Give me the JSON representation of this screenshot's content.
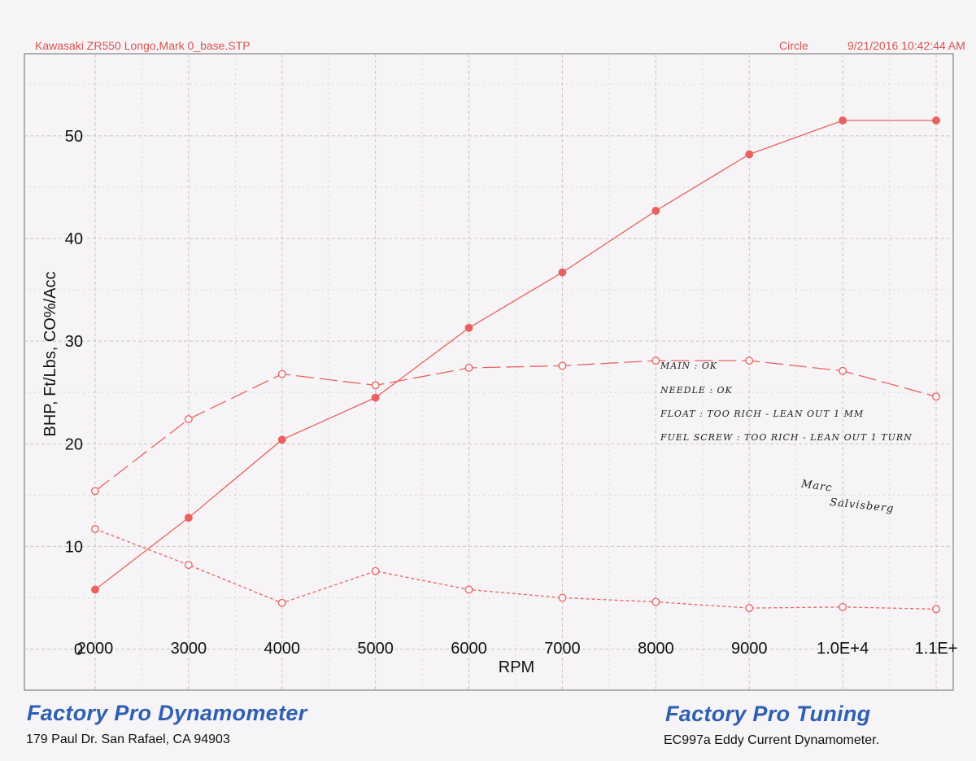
{
  "header": {
    "run_info": "Kawasaki   ZR550   Longo,Mark   0_base.STP",
    "mode": "Circle",
    "timestamp": "9/21/2016 10:42:44 AM"
  },
  "footer": {
    "left_brand": "Factory Pro Dynamometer",
    "left_address": "179 Paul Dr.  San Rafael, CA 94903",
    "right_brand": "Factory Pro Tuning",
    "right_model": "EC997a  Eddy Current Dynamometer."
  },
  "notes": {
    "lines": [
      "MAIN  :  OK",
      "NEEDLE  :  OK",
      "FLOAT  :  TOO RICH - LEAN OUT 1 MM",
      "FUEL SCREW  :  TOO RICH - LEAN OUT 1 TURN"
    ],
    "signature": [
      "Marc",
      "Salvisberg"
    ]
  },
  "colors": {
    "series": "#e8635f",
    "brand": "#2f5fb3",
    "grid": "#c9c4c8"
  },
  "chart_data": {
    "type": "line",
    "xlabel": "RPM",
    "ylabel": "BHP, Ft/Lbs, CO%/Acc",
    "x_tick_labels": [
      "2000",
      "3000",
      "4000",
      "5000",
      "6000",
      "7000",
      "8000",
      "9000",
      "1.0E+4",
      "1.1E+"
    ],
    "y_tick_labels": [
      "0",
      "10",
      "20",
      "30",
      "40",
      "50"
    ],
    "x": [
      2000,
      3000,
      4000,
      5000,
      6000,
      7000,
      8000,
      9000,
      10000,
      11000
    ],
    "xlim": [
      2000,
      11000
    ],
    "ylim": [
      -4,
      58
    ],
    "grid": true,
    "series": [
      {
        "style": "solid",
        "marker": "filled",
        "values": [
          5.8,
          12.8,
          20.4,
          24.5,
          31.3,
          36.7,
          42.7,
          48.2,
          51.5,
          51.5
        ]
      },
      {
        "style": "dashed",
        "marker": "open",
        "values": [
          15.4,
          22.4,
          26.8,
          25.7,
          27.4,
          27.6,
          28.1,
          28.1,
          27.1,
          24.6
        ]
      },
      {
        "style": "dotted",
        "marker": "open",
        "values": [
          11.7,
          8.2,
          4.5,
          7.6,
          5.8,
          5.0,
          4.6,
          4.0,
          4.1,
          3.9
        ]
      }
    ]
  }
}
